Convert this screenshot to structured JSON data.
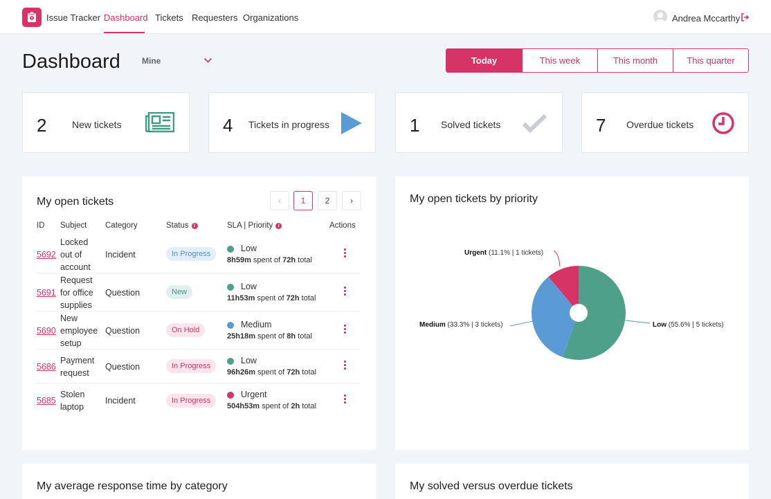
{
  "app": {
    "name": "Issue Tracker"
  },
  "nav": {
    "items": [
      "Dashboard",
      "Tickets",
      "Requesters",
      "Organizations"
    ],
    "active": "Dashboard"
  },
  "user": {
    "name": "Andrea Mccarthy"
  },
  "header": {
    "title": "Dashboard",
    "scope": "Mine",
    "periods": [
      "Today",
      "This week",
      "This month",
      "This quarter"
    ],
    "active_period": "Today"
  },
  "stats": [
    {
      "value": "2",
      "label": "New tickets",
      "icon": "newspaper-icon",
      "color": "#3f9b7f"
    },
    {
      "value": "4",
      "label": "Tickets in progress",
      "icon": "play-icon",
      "color": "#5b9bd5"
    },
    {
      "value": "1",
      "label": "Solved tickets",
      "icon": "checkmark-icon",
      "color": "#c9ccd1"
    },
    {
      "value": "7",
      "label": "Overdue tickets",
      "icon": "clock-icon",
      "color": "#d63366"
    }
  ],
  "open_tickets": {
    "title": "My open tickets",
    "pager": {
      "prev": "‹",
      "pages": [
        "1",
        "2"
      ],
      "next": "›",
      "current": "1"
    },
    "columns": [
      "ID",
      "Subject",
      "Category",
      "Status",
      "SLA | Priority",
      "Actions"
    ],
    "rows": [
      {
        "id": "5692",
        "subject": [
          "Locked",
          "out of",
          "account"
        ],
        "category": "Incident",
        "status": "In Progress",
        "priority": "Low",
        "spent": "8h59m",
        "spent_text": " spent of ",
        "total": "72h",
        "total_text": " total"
      },
      {
        "id": "5691",
        "subject": [
          "Request",
          "for office",
          "supplies"
        ],
        "category": "Question",
        "status": "New",
        "priority": "Low",
        "spent": "11h53m",
        "spent_text": " spent of ",
        "total": "72h",
        "total_text": " total"
      },
      {
        "id": "5690",
        "subject": [
          "New",
          "employee",
          "setup"
        ],
        "category": "Question",
        "status": "On Hold",
        "priority": "Medium",
        "spent": "25h18m",
        "spent_text": " spent of ",
        "total": "8h",
        "total_text": " total"
      },
      {
        "id": "5686",
        "subject": [
          "Payment",
          "request"
        ],
        "category": "Question",
        "status": "In Progress",
        "priority": "Low",
        "spent": "96h26m",
        "spent_text": " spent of ",
        "total": "72h",
        "total_text": " total"
      },
      {
        "id": "5685",
        "subject": [
          "Stolen",
          "laptop"
        ],
        "category": "Incident",
        "status": "In Progress",
        "priority": "Urgent",
        "spent": "504h53m",
        "spent_text": " spent of ",
        "total": "2h",
        "total_text": " total"
      }
    ]
  },
  "priority_colors": {
    "Low": "#4fa08a",
    "Medium": "#5b9bd5",
    "Urgent": "#d63366"
  },
  "chart_data": {
    "type": "pie",
    "title": "My open tickets by priority",
    "donut": true,
    "slices": [
      {
        "name": "Low",
        "value": 5,
        "pct": "55.6%",
        "detail": " (55.6% | 5 tickets)",
        "color": "#4fa08a"
      },
      {
        "name": "Medium",
        "value": 3,
        "pct": "33.3%",
        "detail": " (33.3% | 3 tickets)",
        "color": "#5b9bd5"
      },
      {
        "name": "Urgent",
        "value": 1,
        "pct": "11.1%",
        "detail": " (11.1% | 1 tickets)",
        "color": "#d63366"
      }
    ]
  },
  "bottom_panels": {
    "response_title": "My average response time by category",
    "solved_title": "My solved versus overdue tickets"
  }
}
